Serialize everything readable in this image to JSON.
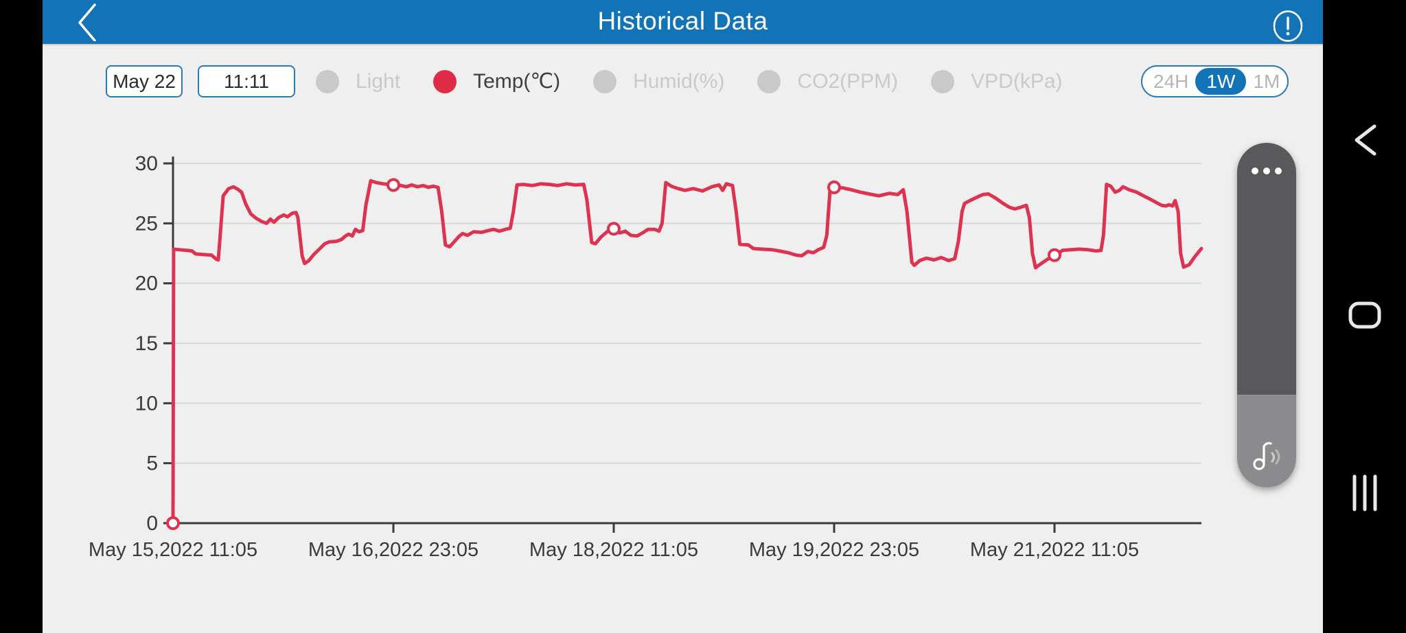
{
  "header": {
    "title": "Historical Data",
    "back_icon": "chevron-left",
    "alert_icon": "exclamation-circle"
  },
  "controls": {
    "date_value": "May 22",
    "time_value": "11:11",
    "legend": [
      {
        "label": "Light",
        "active": false
      },
      {
        "label": "Temp(℃)",
        "active": true
      },
      {
        "label": "Humid(%)",
        "active": false
      },
      {
        "label": "CO2(PPM)",
        "active": false
      },
      {
        "label": "VPD(kPa)",
        "active": false
      }
    ],
    "range_options": [
      {
        "label": "24H",
        "active": false
      },
      {
        "label": "1W",
        "active": true
      },
      {
        "label": "1M",
        "active": false
      }
    ]
  },
  "colors": {
    "header_blue": "#1273b6",
    "accent_blue": "#2b7ab6",
    "line_red": "#dd3350",
    "inactive_gray": "#c9c9c9",
    "axis_dark": "#3a3a3a",
    "grid_gray": "#d7d7d7",
    "screen_bg": "#efefef"
  },
  "chart_data": {
    "type": "line",
    "series_name": "Temp(℃)",
    "x_unit": "hours since May 15,2022 11:05",
    "x_range": [
      0,
      168
    ],
    "ylim": [
      0,
      30
    ],
    "y_ticks": [
      0,
      5,
      10,
      15,
      20,
      25,
      30
    ],
    "x_tick_hours": [
      0,
      36,
      72,
      108,
      144
    ],
    "x_tick_labels": [
      "May 15,2022 11:05",
      "May 16,2022 23:05",
      "May 18,2022 11:05",
      "May 19,2022 23:05",
      "May 21,2022 11:05"
    ],
    "grid": "horizontal-only",
    "legend_position": "top",
    "marker_points": [
      [
        0,
        0
      ],
      [
        36,
        28.2
      ],
      [
        72,
        24.55
      ],
      [
        108,
        28.0
      ],
      [
        144,
        22.35
      ]
    ],
    "points": [
      [
        0,
        0
      ],
      [
        0.1,
        22.85
      ],
      [
        1.1,
        22.8
      ],
      [
        2.2,
        22.75
      ],
      [
        3.1,
        22.7
      ],
      [
        3.7,
        22.45
      ],
      [
        5,
        22.4
      ],
      [
        6.3,
        22.35
      ],
      [
        7.1,
        22.0
      ],
      [
        7.4,
        21.95
      ],
      [
        8.2,
        27.3
      ],
      [
        9.1,
        27.9
      ],
      [
        9.9,
        28.05
      ],
      [
        10.7,
        27.8
      ],
      [
        11.2,
        27.6
      ],
      [
        11.9,
        26.6
      ],
      [
        12.7,
        25.8
      ],
      [
        13.5,
        25.45
      ],
      [
        14.5,
        25.15
      ],
      [
        15.3,
        25.0
      ],
      [
        15.9,
        25.35
      ],
      [
        16.5,
        25.1
      ],
      [
        17.3,
        25.5
      ],
      [
        18.1,
        25.7
      ],
      [
        18.7,
        25.55
      ],
      [
        19.5,
        25.85
      ],
      [
        20.1,
        25.9
      ],
      [
        20.4,
        25.5
      ],
      [
        21.1,
        22.3
      ],
      [
        21.5,
        21.65
      ],
      [
        22.2,
        21.9
      ],
      [
        23,
        22.4
      ],
      [
        24,
        22.9
      ],
      [
        24.8,
        23.3
      ],
      [
        25.5,
        23.45
      ],
      [
        26.7,
        23.5
      ],
      [
        27.5,
        23.65
      ],
      [
        28.2,
        23.95
      ],
      [
        28.7,
        24.1
      ],
      [
        29.3,
        23.95
      ],
      [
        29.8,
        24.5
      ],
      [
        30.4,
        24.3
      ],
      [
        31,
        24.4
      ],
      [
        31.5,
        26.5
      ],
      [
        32.3,
        28.55
      ],
      [
        33.2,
        28.4
      ],
      [
        34.3,
        28.3
      ],
      [
        36,
        28.2
      ],
      [
        37.3,
        28.15
      ],
      [
        38.1,
        28.05
      ],
      [
        39,
        28.2
      ],
      [
        39.9,
        28.05
      ],
      [
        40.9,
        28.15
      ],
      [
        41.7,
        28.0
      ],
      [
        42.5,
        28.1
      ],
      [
        43.3,
        28.0
      ],
      [
        43.9,
        26.0
      ],
      [
        44.5,
        23.2
      ],
      [
        45.2,
        23.05
      ],
      [
        46,
        23.5
      ],
      [
        46.7,
        23.9
      ],
      [
        47.3,
        24.15
      ],
      [
        48.1,
        24.0
      ],
      [
        49.1,
        24.3
      ],
      [
        50.4,
        24.25
      ],
      [
        51.5,
        24.4
      ],
      [
        52.4,
        24.5
      ],
      [
        53.3,
        24.35
      ],
      [
        54.3,
        24.5
      ],
      [
        55.1,
        24.6
      ],
      [
        55.6,
        26.0
      ],
      [
        56.2,
        28.2
      ],
      [
        57.2,
        28.25
      ],
      [
        58.7,
        28.15
      ],
      [
        60.1,
        28.3
      ],
      [
        61.5,
        28.25
      ],
      [
        62.8,
        28.15
      ],
      [
        64.3,
        28.3
      ],
      [
        65.7,
        28.2
      ],
      [
        67.1,
        28.25
      ],
      [
        67.6,
        27.0
      ],
      [
        68.4,
        23.4
      ],
      [
        69,
        23.3
      ],
      [
        69.9,
        23.85
      ],
      [
        70.9,
        24.3
      ],
      [
        72,
        24.55
      ],
      [
        73,
        24.2
      ],
      [
        73.9,
        24.35
      ],
      [
        74.8,
        24.0
      ],
      [
        75.8,
        23.95
      ],
      [
        76.7,
        24.2
      ],
      [
        77.6,
        24.5
      ],
      [
        78.7,
        24.5
      ],
      [
        79.4,
        24.35
      ],
      [
        79.9,
        25.0
      ],
      [
        80.5,
        28.4
      ],
      [
        81.4,
        28.1
      ],
      [
        82.2,
        27.95
      ],
      [
        83.6,
        27.75
      ],
      [
        85,
        27.9
      ],
      [
        86.5,
        27.7
      ],
      [
        88,
        28.05
      ],
      [
        89.2,
        28.2
      ],
      [
        89.8,
        27.75
      ],
      [
        90.4,
        28.3
      ],
      [
        91.4,
        28.15
      ],
      [
        92,
        26.0
      ],
      [
        92.6,
        23.25
      ],
      [
        94,
        23.2
      ],
      [
        94.8,
        22.9
      ],
      [
        96.2,
        22.85
      ],
      [
        97.9,
        22.8
      ],
      [
        99,
        22.7
      ],
      [
        100.5,
        22.55
      ],
      [
        101.8,
        22.35
      ],
      [
        102.7,
        22.3
      ],
      [
        103.7,
        22.65
      ],
      [
        104.6,
        22.55
      ],
      [
        105.4,
        22.8
      ],
      [
        106.3,
        23.0
      ],
      [
        106.8,
        24.0
      ],
      [
        107.4,
        28.3
      ],
      [
        108,
        28.0
      ],
      [
        109.5,
        27.95
      ],
      [
        110.8,
        27.8
      ],
      [
        112.3,
        27.6
      ],
      [
        113.7,
        27.45
      ],
      [
        115.3,
        27.3
      ],
      [
        117,
        27.5
      ],
      [
        118.4,
        27.4
      ],
      [
        119.3,
        27.8
      ],
      [
        119.9,
        26.0
      ],
      [
        120.7,
        21.75
      ],
      [
        121.1,
        21.5
      ],
      [
        122,
        21.9
      ],
      [
        123.1,
        22.1
      ],
      [
        124.3,
        21.95
      ],
      [
        125.5,
        22.15
      ],
      [
        126.7,
        21.9
      ],
      [
        127.7,
        22.05
      ],
      [
        128.3,
        23.5
      ],
      [
        128.9,
        26.0
      ],
      [
        129.3,
        26.65
      ],
      [
        130.2,
        26.9
      ],
      [
        131.2,
        27.15
      ],
      [
        132.3,
        27.4
      ],
      [
        133.2,
        27.45
      ],
      [
        134.4,
        27.1
      ],
      [
        135.5,
        26.7
      ],
      [
        136.6,
        26.35
      ],
      [
        137.5,
        26.2
      ],
      [
        138.5,
        26.35
      ],
      [
        139.4,
        26.5
      ],
      [
        139.9,
        25.5
      ],
      [
        140.4,
        22.5
      ],
      [
        140.9,
        21.3
      ],
      [
        141.7,
        21.6
      ],
      [
        142.7,
        21.95
      ],
      [
        144,
        22.35
      ],
      [
        144.8,
        22.55
      ],
      [
        145.3,
        22.75
      ],
      [
        146.7,
        22.8
      ],
      [
        148,
        22.85
      ],
      [
        149.5,
        22.8
      ],
      [
        150.8,
        22.7
      ],
      [
        151.6,
        22.75
      ],
      [
        152,
        24.0
      ],
      [
        152.5,
        28.25
      ],
      [
        153.2,
        28.1
      ],
      [
        153.9,
        27.6
      ],
      [
        154.6,
        27.75
      ],
      [
        155.2,
        28.05
      ],
      [
        156.2,
        27.8
      ],
      [
        157.4,
        27.6
      ],
      [
        158.7,
        27.25
      ],
      [
        159.7,
        27.0
      ],
      [
        160.6,
        26.75
      ],
      [
        161.5,
        26.5
      ],
      [
        162.2,
        26.45
      ],
      [
        162.7,
        26.55
      ],
      [
        163.3,
        26.45
      ],
      [
        163.7,
        26.9
      ],
      [
        164.2,
        26.0
      ],
      [
        164.6,
        22.5
      ],
      [
        165.1,
        21.35
      ],
      [
        166,
        21.55
      ],
      [
        166.9,
        22.2
      ],
      [
        168,
        22.9
      ]
    ]
  },
  "side_widget": {
    "more_icon": "three-dots",
    "sound_icon": "music-note-waves"
  },
  "nav_bar": {
    "back_icon": "chevron-back",
    "home_icon": "home-pill",
    "recents_icon": "three-bars"
  }
}
